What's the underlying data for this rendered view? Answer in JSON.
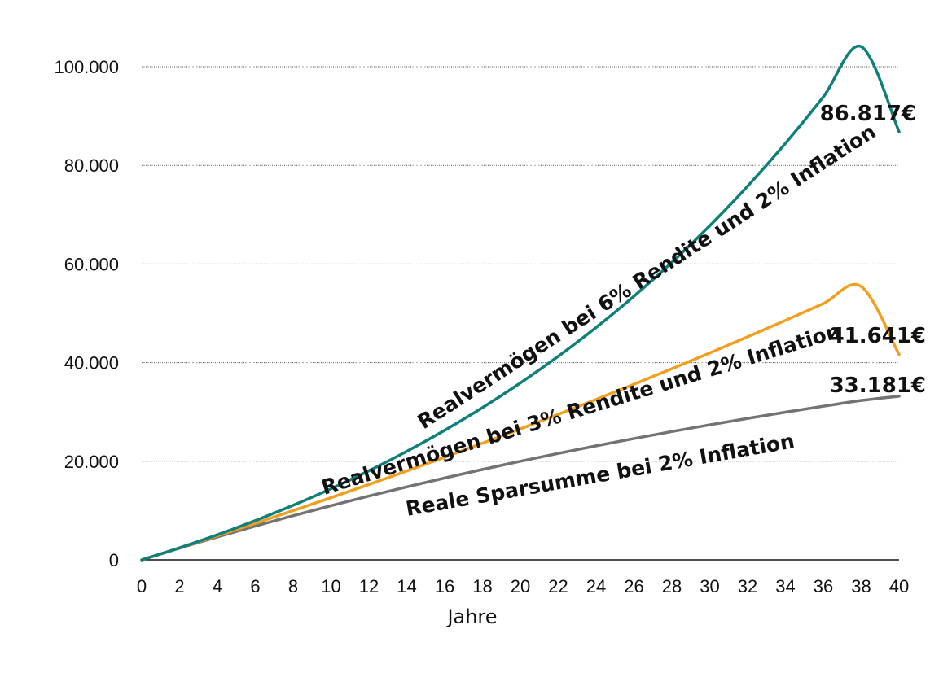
{
  "chart_data": {
    "type": "line",
    "title": "",
    "xlabel": "Jahre",
    "ylabel": "",
    "xlim": [
      0,
      40
    ],
    "ylim": [
      0,
      100000
    ],
    "x_ticks": [
      "0",
      "2",
      "4",
      "6",
      "8",
      "10",
      "12",
      "14",
      "16",
      "18",
      "20",
      "22",
      "24",
      "26",
      "28",
      "30",
      "32",
      "34",
      "36",
      "38",
      "40"
    ],
    "y_ticks": [
      "0",
      "20.000",
      "40.000",
      "60.000",
      "80.000",
      "100.000"
    ],
    "y_tick_values": [
      0,
      20000,
      40000,
      60000,
      80000,
      100000
    ],
    "grid": "horizontal",
    "x": [
      0,
      2,
      4,
      6,
      8,
      10,
      12,
      14,
      16,
      18,
      20,
      22,
      24,
      26,
      28,
      30,
      32,
      34,
      36,
      38,
      40
    ],
    "series": [
      {
        "name": "Realvermögen bei 6% Rendite und 2% Inflation",
        "color": "#0f7f7a",
        "end_label": "86.817€",
        "values": [
          0,
          2448,
          5098,
          7966,
          11071,
          14431,
          18069,
          22006,
          26268,
          30882,
          35875,
          41281,
          47132,
          53466,
          60322,
          67743,
          75776,
          84471,
          93883,
          104071,
          86817
        ]
      },
      {
        "name": "Realvermögen bei 3% Rendite und 2% Inflation",
        "color": "#f0a01e",
        "end_label": "41.641€",
        "values": [
          0,
          2424,
          4897,
          7420,
          9993,
          12618,
          15296,
          18028,
          20815,
          23658,
          26558,
          29517,
          32535,
          35614,
          38755,
          41960,
          45229,
          48564,
          51966,
          55437,
          41641
        ]
      },
      {
        "name": "Reale Sparsumme bei 2% Inflation",
        "color": "#737373",
        "end_label": "33.181€",
        "values": [
          0,
          2376,
          4659,
          6853,
          8962,
          10988,
          12936,
          14807,
          16606,
          18335,
          19996,
          21592,
          23127,
          24601,
          26018,
          27380,
          28689,
          29947,
          31155,
          32317,
          33181
        ]
      }
    ]
  }
}
